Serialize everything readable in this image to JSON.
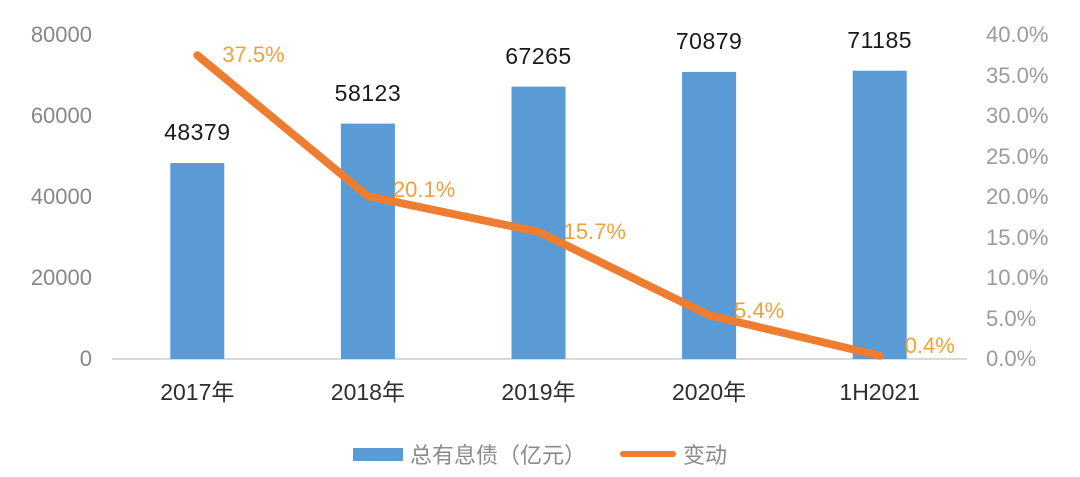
{
  "chart_data": {
    "type": "bar+line combo",
    "categories": [
      "2017年",
      "2018年",
      "2019年",
      "2020年",
      "1H2021"
    ],
    "series": [
      {
        "name": "总有息债（亿元）",
        "type": "bar",
        "axis": "left",
        "values": [
          48379,
          58123,
          67265,
          70879,
          71185
        ],
        "labels": [
          "48379",
          "58123",
          "67265",
          "70879",
          "71185"
        ]
      },
      {
        "name": "变动",
        "type": "line",
        "axis": "right",
        "values": [
          37.5,
          20.1,
          15.7,
          5.4,
          0.4
        ],
        "labels": [
          "37.5%",
          "20.1%",
          "15.7%",
          "5.4%",
          "0.4%"
        ]
      }
    ],
    "left_axis": {
      "min": 0,
      "max": 80000,
      "step": 20000,
      "ticks": [
        "0",
        "20000",
        "40000",
        "60000",
        "80000"
      ]
    },
    "right_axis": {
      "min": 0,
      "max": 40,
      "step": 5,
      "ticks": [
        "0.0%",
        "5.0%",
        "10.0%",
        "15.0%",
        "20.0%",
        "25.0%",
        "30.0%",
        "35.0%",
        "40.0%"
      ]
    },
    "legend": [
      {
        "label": "总有息债（亿元）",
        "marker": "bar-swatch"
      },
      {
        "label": "变动",
        "marker": "line-swatch"
      }
    ],
    "grid": "off",
    "legend_position": "bottom-center",
    "colors": {
      "bar": "#5B9BD5",
      "line": "#ED7D31",
      "bar_label": "#1a1a1a",
      "line_label": "#f2a03c",
      "left_tick": "#878787",
      "right_tick": "#9b9b9b",
      "x_label": "#2e2e2e",
      "legend_text": "#8a8a8a",
      "axis_line": "#d9d9d9",
      "background": "#ffffff"
    }
  }
}
